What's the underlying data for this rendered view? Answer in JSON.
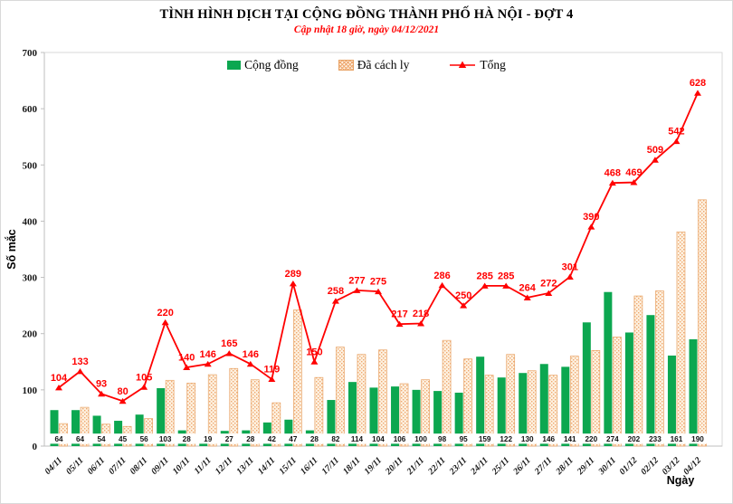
{
  "title": "TÌNH HÌNH DỊCH TẠI CỘNG ĐỒNG THÀNH PHỐ HÀ NỘI - ĐỢT 4",
  "subtitle": "Cập nhật 18 giờ, ngày 04/12/2021",
  "legend": {
    "items": [
      {
        "label": "Cộng đồng"
      },
      {
        "label": "Đã cách ly"
      },
      {
        "label": "Tổng"
      }
    ]
  },
  "colors": {
    "community": "#0ca750",
    "quarantine_fill": "#fdf1e0",
    "quarantine_dot": "#efa871",
    "quarantine_border": "#e8a264",
    "total_line": "#ff0000",
    "axis": "#bfbfbf",
    "plot_border": "#d9d9d9"
  },
  "chart_data": {
    "type": "bar",
    "subtype": "grouped-bars-with-line-overlay",
    "title": "TÌNH HÌNH DỊCH TẠI CỘNG ĐỒNG THÀNH PHỐ HÀ NỘI - ĐỢT 4",
    "subtitle": "Cập nhật 18 giờ, ngày 04/12/2021",
    "xlabel": "Ngày",
    "ylabel": "Số mắc",
    "ylim": [
      0,
      700
    ],
    "yticks": [
      0,
      100,
      200,
      300,
      400,
      500,
      600,
      700
    ],
    "grid": false,
    "legend_position": "top",
    "categories": [
      "04/11",
      "05/11",
      "06/11",
      "07/11",
      "08/11",
      "09/11",
      "10/11",
      "11/11",
      "12/11",
      "13/11",
      "14/11",
      "15/11",
      "16/11",
      "17/11",
      "18/11",
      "19/11",
      "20/11",
      "21/11",
      "22/11",
      "23/11",
      "24/11",
      "25/11",
      "26/11",
      "27/11",
      "28/11",
      "29/11",
      "30/11",
      "01/12",
      "02/12",
      "03/12",
      "04/12"
    ],
    "series": [
      {
        "name": "Cộng đồng",
        "type": "bar",
        "data_labels": "bottom-boxes",
        "values": [
          64,
          64,
          54,
          45,
          56,
          103,
          28,
          19,
          27,
          28,
          42,
          47,
          28,
          82,
          114,
          104,
          106,
          100,
          98,
          95,
          159,
          122,
          130,
          146,
          141,
          220,
          274,
          202,
          233,
          161,
          190
        ]
      },
      {
        "name": "Đã cách ly",
        "type": "bar",
        "data_labels": "none",
        "values": [
          40,
          69,
          39,
          35,
          49,
          117,
          112,
          127,
          138,
          118,
          77,
          242,
          122,
          176,
          163,
          171,
          111,
          118,
          188,
          155,
          126,
          163,
          134,
          126,
          160,
          170,
          194,
          267,
          276,
          381,
          438
        ]
      },
      {
        "name": "Tổng",
        "type": "line",
        "data_labels": "above-points",
        "values": [
          104,
          133,
          93,
          80,
          105,
          220,
          140,
          146,
          165,
          146,
          119,
          289,
          150,
          258,
          277,
          275,
          217,
          218,
          286,
          250,
          285,
          285,
          264,
          272,
          301,
          390,
          468,
          469,
          509,
          542,
          628
        ]
      }
    ]
  }
}
